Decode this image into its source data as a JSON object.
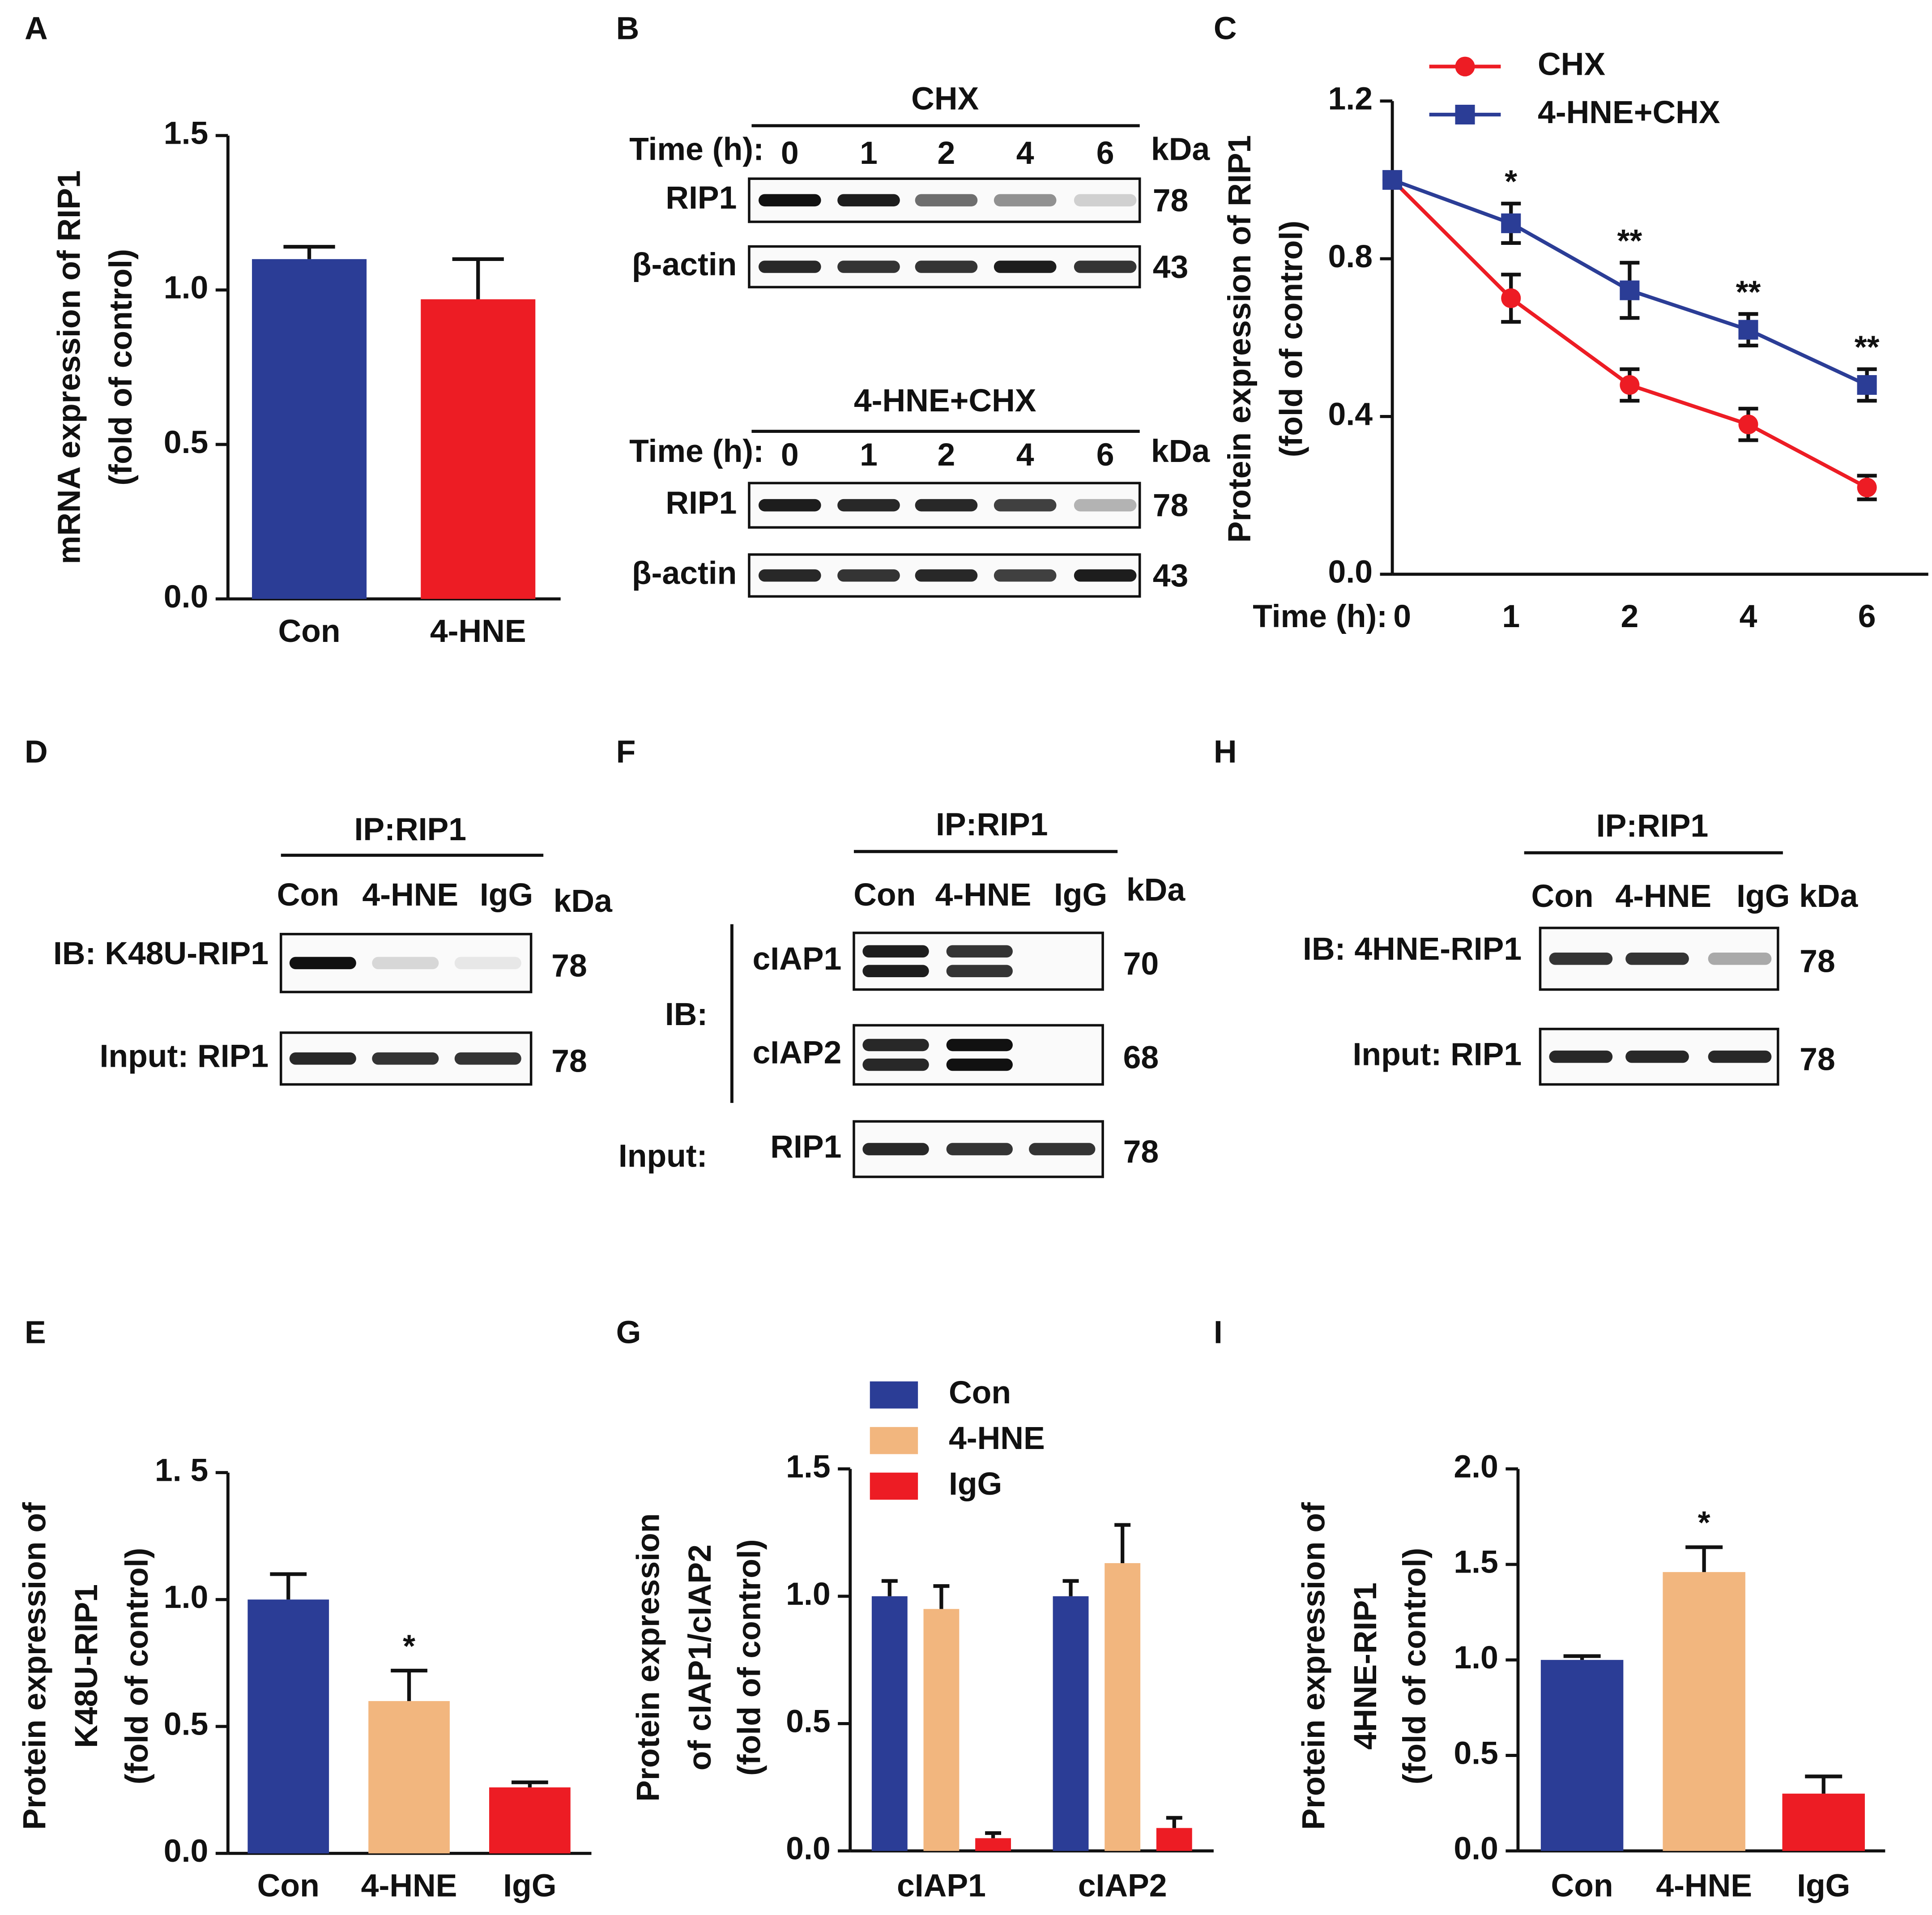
{
  "chart_data": [
    {
      "type": "bar",
      "label": "A",
      "ylabel": [
        "mRNA expression of RIP1",
        "(fold of control)"
      ],
      "categories": [
        "Con",
        "4-HNE"
      ],
      "values": [
        1.1,
        0.97
      ],
      "errors": [
        0.04,
        0.13
      ],
      "colors": [
        "#2b3d96",
        "#ed1c24"
      ],
      "ylim": [
        0,
        1.5
      ],
      "yticks": [
        {
          "value": 0,
          "label": "0.0"
        },
        0.5,
        {
          "value": 1,
          "label": "1.0"
        },
        1.5
      ]
    },
    {
      "type": "line",
      "label": "C",
      "ylabel": [
        "Protein expression of RIP1",
        "(fold of control)"
      ],
      "xlabel": "Time (h):",
      "categories": [
        "0",
        "1",
        "2",
        "4",
        "6"
      ],
      "series": [
        {
          "name": "CHX",
          "color": "#ed1c24",
          "marker": "circle",
          "values": [
            1.0,
            0.7,
            0.48,
            0.38,
            0.22
          ],
          "errors": [
            null,
            0.06,
            0.04,
            0.04,
            0.03
          ]
        },
        {
          "name": "4-HNE+CHX",
          "color": "#2b3d96",
          "marker": "square",
          "values": [
            1.0,
            0.89,
            0.72,
            0.62,
            0.48
          ],
          "errors": [
            null,
            0.05,
            0.07,
            0.04,
            0.04
          ]
        }
      ],
      "annotations": [
        {
          "category": "1",
          "text": "*"
        },
        {
          "category": "2",
          "text": "**"
        },
        {
          "category": "4",
          "text": "**"
        },
        {
          "category": "6",
          "text": "**"
        }
      ],
      "ylim": [
        0,
        1.2
      ],
      "yticks": [
        {
          "value": 0,
          "label": "0.0"
        },
        0.4,
        0.8,
        1.2
      ]
    },
    {
      "type": "bar",
      "label": "E",
      "ylabel": [
        "Protein expression of",
        "K48U-RIP1",
        "(fold of control)"
      ],
      "categories": [
        "Con",
        "4-HNE",
        "IgG"
      ],
      "values": [
        1.0,
        0.6,
        0.26
      ],
      "errors": [
        0.1,
        0.12,
        0.02
      ],
      "colors": [
        "#2b3d96",
        "#f2b67e",
        "#ed1c24"
      ],
      "annotations": [
        {
          "category": "4-HNE",
          "text": "*"
        }
      ],
      "ylim": [
        0,
        1.5
      ],
      "yticks": [
        {
          "value": 0,
          "label": "0.0"
        },
        0.5,
        {
          "value": 1,
          "label": "1.0"
        },
        {
          "value": 1.5,
          "label": "1. 5"
        }
      ]
    },
    {
      "type": "bar",
      "label": "G",
      "ylabel": [
        "Protein expression",
        "of cIAP1/cIAP2",
        "(fold of control)"
      ],
      "categories": [
        "cIAP1",
        "cIAP2"
      ],
      "series": [
        {
          "name": "Con",
          "color": "#2b3d96",
          "values": [
            1.0,
            1.0
          ],
          "errors": [
            0.06,
            0.06
          ]
        },
        {
          "name": "4-HNE",
          "color": "#f2b67e",
          "values": [
            0.95,
            1.13
          ],
          "errors": [
            0.09,
            0.15
          ]
        },
        {
          "name": "IgG",
          "color": "#ed1c24",
          "values": [
            0.05,
            0.09
          ],
          "errors": [
            0.02,
            0.04
          ]
        }
      ],
      "ylim": [
        0,
        1.5
      ],
      "yticks": [
        {
          "value": 0,
          "label": "0.0"
        },
        0.5,
        {
          "value": 1,
          "label": "1.0"
        },
        1.5
      ]
    },
    {
      "type": "bar",
      "label": "I",
      "ylabel": [
        "Protein expression of",
        "4HNE-RIP1",
        "(fold of control)"
      ],
      "categories": [
        "Con",
        "4-HNE",
        "IgG"
      ],
      "values": [
        1.0,
        1.46,
        0.3
      ],
      "errors": [
        0.02,
        0.13,
        0.09
      ],
      "colors": [
        "#2b3d96",
        "#f2b67e",
        "#ed1c24"
      ],
      "annotations": [
        {
          "category": "4-HNE",
          "text": "*"
        }
      ],
      "ylim": [
        0,
        2
      ],
      "yticks": [
        {
          "value": 0,
          "label": "0.0"
        },
        0.5,
        {
          "value": 1,
          "label": "1.0"
        },
        1.5,
        {
          "value": 2,
          "label": "2.0"
        }
      ]
    }
  ],
  "blots": [
    {
      "label": "B",
      "groups": [
        {
          "title": "CHX",
          "time_label": "Time (h):",
          "lanes": [
            "0",
            "1",
            "2",
            "4",
            "6"
          ],
          "kda_label": "kDa",
          "rows": [
            {
              "name": "RIP1",
              "kda": 78
            },
            {
              "name": "β-actin",
              "kda": 43
            }
          ]
        },
        {
          "title": "4-HNE+CHX",
          "time_label": "Time (h):",
          "lanes": [
            "0",
            "1",
            "2",
            "4",
            "6"
          ],
          "kda_label": "kDa",
          "rows": [
            {
              "name": "RIP1",
              "kda": 78
            },
            {
              "name": "β-actin",
              "kda": 43
            }
          ]
        }
      ]
    },
    {
      "label": "D",
      "ip": "IP:RIP1",
      "lanes": [
        "Con",
        "4-HNE",
        "IgG"
      ],
      "kda_label": "kDa",
      "rows": [
        {
          "name": "IB: K48U-RIP1",
          "kda": 78
        },
        {
          "name": "Input: RIP1",
          "kda": 78
        }
      ]
    },
    {
      "label": "F",
      "ip": "IP:RIP1",
      "lanes": [
        "Con",
        "4-HNE",
        "IgG"
      ],
      "kda_label": "kDa",
      "ib_label": "IB:",
      "input_label": "Input:",
      "rows": [
        {
          "name": "cIAP1",
          "kda": 70
        },
        {
          "name": "cIAP2",
          "kda": 68
        },
        {
          "name": "RIP1",
          "kda": 78
        }
      ]
    },
    {
      "label": "H",
      "ip": "IP:RIP1",
      "lanes": [
        "Con",
        "4-HNE",
        "IgG"
      ],
      "kda_label": "kDa",
      "rows": [
        {
          "name": "IB: 4HNE-RIP1",
          "kda": 78
        },
        {
          "name": "Input: RIP1",
          "kda": 78
        }
      ]
    }
  ]
}
